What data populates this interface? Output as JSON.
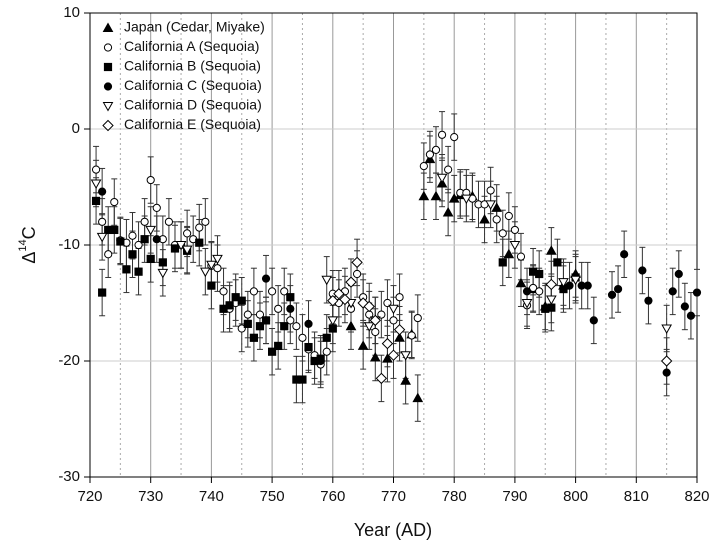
{
  "chart_data": {
    "type": "scatter",
    "xlabel": "Year (AD)",
    "ylabel_parts": [
      "Δ",
      "14",
      "C"
    ],
    "xlim": [
      720,
      820
    ],
    "xticks": [
      720,
      730,
      740,
      750,
      760,
      770,
      780,
      790,
      800,
      810,
      820
    ],
    "xminor": [
      725,
      735,
      745,
      755,
      765,
      775,
      785,
      795,
      805,
      815
    ],
    "ylim": [
      -30,
      10
    ],
    "yticks": [
      -30,
      -20,
      -10,
      0,
      10
    ],
    "grid": true,
    "legend": "upper left",
    "series": [
      {
        "name": "Japan (Cedar, Miyake)",
        "marker": "triangle-up",
        "color": "#000000",
        "filled": true,
        "error": 2,
        "x": [
          763,
          765,
          767,
          769,
          771,
          772,
          773,
          774,
          775,
          776,
          777,
          778,
          779,
          780,
          781,
          783,
          785,
          787,
          789,
          791,
          793,
          795,
          796,
          798,
          800
        ],
        "values": [
          -17,
          -18.7,
          -19.7,
          -19.8,
          -18,
          -21.7,
          -17.7,
          -23.2,
          -5.8,
          -2.6,
          -5.8,
          -4.7,
          -7.2,
          -6,
          -5.7,
          -5.8,
          -7.8,
          -6.8,
          -10.8,
          -13.3,
          -13.8,
          -15.3,
          -10.5,
          -13.5,
          -12.5
        ]
      },
      {
        "name": "California A (Sequoia)",
        "marker": "circle",
        "color": "#000000",
        "filled": false,
        "error": 2,
        "x": [
          721,
          722,
          723,
          724,
          725,
          726,
          727,
          728,
          729,
          730,
          731,
          732,
          733,
          734,
          735,
          736,
          737,
          738,
          739,
          740,
          741,
          742,
          743,
          744,
          745,
          746,
          747,
          748,
          749,
          750,
          751,
          752,
          753,
          754,
          755,
          756,
          757,
          758,
          759,
          760,
          761,
          762,
          763,
          764,
          765,
          766,
          767,
          768,
          769,
          770,
          771,
          773,
          774,
          775,
          776,
          777,
          778,
          779,
          780,
          781,
          782,
          783,
          784,
          785,
          786,
          787,
          788,
          789,
          790,
          791,
          792,
          793,
          794
        ],
        "values": [
          -3.5,
          -8,
          -10.8,
          -6.3,
          -9.6,
          -9.8,
          -9.2,
          -10,
          -8,
          -4.4,
          -6.8,
          -9.5,
          -8,
          -10,
          -10,
          -9,
          -9.5,
          -8.5,
          -8,
          -11.8,
          -12,
          -14,
          -15.5,
          -15,
          -17.2,
          -16,
          -14,
          -16,
          -16.5,
          -14,
          -15.5,
          -14,
          -16.5,
          -17,
          -18,
          -19,
          -19.5,
          -20.3,
          -19.2,
          -14.2,
          -15,
          -14,
          -15.5,
          -12.5,
          -14.5,
          -16,
          -17.5,
          -16,
          -15,
          -16.5,
          -14.5,
          -17.8,
          -16.3,
          -3.2,
          -2.2,
          -1.8,
          -0.5,
          -3.5,
          -0.7,
          -5.5,
          -5.5,
          -6,
          -6.5,
          -6.5,
          -5.3,
          -7.8,
          -9,
          -7.5,
          -8.7,
          -11,
          -15.2,
          -13.7,
          -14
        ]
      },
      {
        "name": "California B (Sequoia)",
        "marker": "square",
        "color": "#000000",
        "filled": true,
        "error": 2,
        "x": [
          721,
          722,
          723,
          724,
          725,
          726,
          727,
          728,
          729,
          730,
          732,
          734,
          736,
          738,
          740,
          742,
          743,
          744,
          745,
          746,
          747,
          748,
          749,
          750,
          751,
          752,
          753,
          754,
          755,
          756,
          757,
          758,
          759,
          760,
          788,
          793,
          794,
          795,
          796,
          797,
          798,
          800
        ],
        "values": [
          -6.2,
          -14.1,
          -8.7,
          -8.7,
          -9.7,
          -12.1,
          -10.8,
          -12.3,
          -9.5,
          -11.2,
          -11.5,
          -10.3,
          -10.5,
          -9.8,
          -13.5,
          -15.5,
          -15.2,
          -14.5,
          -14.8,
          -16.8,
          -18,
          -17,
          -16.5,
          -19.2,
          -18.7,
          -17,
          -14.5,
          -21.6,
          -21.6,
          -18.8,
          -20,
          -19.8,
          -18,
          -17.2,
          -11.5,
          -12.3,
          -12.5,
          -15.5,
          -15.4,
          -11.5,
          -13.8,
          -12.8
        ]
      },
      {
        "name": "California C (Sequoia)",
        "marker": "circle",
        "color": "#000000",
        "filled": true,
        "error": 2,
        "x": [
          722,
          731,
          749,
          753,
          756,
          758,
          792,
          799,
          801,
          802,
          803,
          806,
          807,
          808,
          811,
          812,
          815,
          816,
          817,
          818,
          819,
          820
        ],
        "values": [
          -5.4,
          -9.5,
          -12.9,
          -15.5,
          -16.8,
          -20,
          -14,
          -13.5,
          -13.5,
          -13.5,
          -16.5,
          -14.3,
          -13.8,
          -10.8,
          -12.2,
          -14.8,
          -21,
          -14,
          -12.5,
          -15.3,
          -16.1,
          -14.1
        ]
      },
      {
        "name": "California D (Sequoia)",
        "marker": "triangle-down",
        "color": "#000000",
        "filled": false,
        "error": 2,
        "x": [
          721,
          722,
          730,
          732,
          735,
          736,
          739,
          740,
          741,
          759,
          760,
          763,
          766,
          767,
          770,
          772,
          778,
          782,
          786,
          790,
          792,
          796,
          798,
          800,
          815
        ],
        "values": [
          -4.7,
          -9.3,
          -8.7,
          -12.4,
          -10,
          -10.4,
          -12.3,
          -11.7,
          -11.2,
          -13,
          -16.5,
          -15,
          -17,
          -16.5,
          -15.5,
          -19.5,
          -4.2,
          -6,
          -6.5,
          -10,
          -15,
          -14.7,
          -13.2,
          -13,
          -17.2
        ]
      },
      {
        "name": "California E (Sequoia)",
        "marker": "diamond",
        "color": "#000000",
        "filled": false,
        "error": 2,
        "x": [
          760,
          761,
          762,
          763,
          764,
          765,
          766,
          767,
          768,
          769,
          770,
          771,
          796,
          815
        ],
        "values": [
          -14.8,
          -14.2,
          -14.7,
          -13.2,
          -11.5,
          -15,
          -15.3,
          -16.5,
          -21.5,
          -18.5,
          -19.5,
          -17.3,
          -13.4,
          -20
        ]
      }
    ]
  }
}
